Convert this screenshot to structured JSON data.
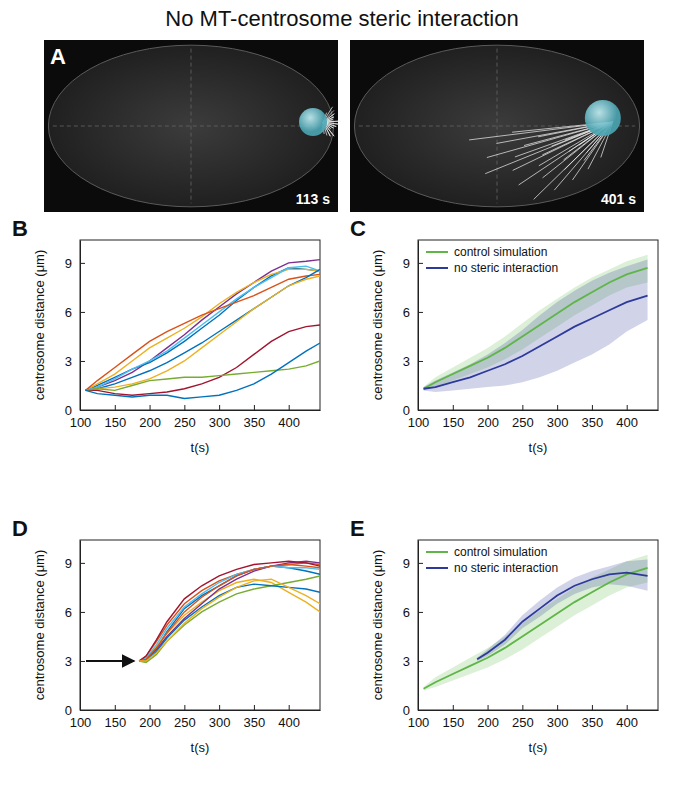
{
  "title": "No MT-centrosome steric interaction",
  "panel_a": {
    "letter": "A",
    "frames": [
      "113 s",
      "401 s"
    ]
  },
  "chart_data": [
    {
      "panel": "B",
      "type": "line",
      "x_label": "t(s)",
      "y_label": "centrosome distance (μm)",
      "xlim": [
        100,
        445
      ],
      "ylim": [
        0,
        10.4
      ],
      "xticks": [
        100,
        150,
        200,
        250,
        300,
        350,
        400
      ],
      "yticks": [
        0,
        3,
        6,
        9
      ],
      "series": [
        {
          "color": "#7e2f8e",
          "x": [
            108,
            125,
            150,
            175,
            200,
            225,
            250,
            275,
            300,
            325,
            350,
            375,
            400,
            425,
            445
          ],
          "values": [
            1.2,
            1.4,
            1.8,
            2.3,
            3,
            3.8,
            4.6,
            5.5,
            6.3,
            7.1,
            7.8,
            8.5,
            9,
            9.1,
            9.2
          ]
        },
        {
          "color": "#0072bd",
          "x": [
            108,
            125,
            150,
            175,
            200,
            225,
            250,
            275,
            300,
            325,
            350,
            375,
            400,
            425,
            445
          ],
          "values": [
            1.2,
            1.5,
            2,
            2.5,
            2.9,
            3.5,
            4.2,
            5,
            5.8,
            6.7,
            7.5,
            8.2,
            8.7,
            8.6,
            8.5
          ]
        },
        {
          "color": "#edb120",
          "x": [
            108,
            125,
            150,
            175,
            200,
            225,
            250,
            275,
            300,
            325,
            350,
            375,
            400,
            425,
            445
          ],
          "values": [
            1.2,
            1.6,
            2.2,
            3,
            3.8,
            4.4,
            5,
            5.7,
            6.5,
            7.2,
            7.8,
            8.3,
            8.6,
            8.6,
            8.5
          ]
        },
        {
          "color": "#4dbeee",
          "x": [
            108,
            125,
            150,
            175,
            200,
            225,
            250,
            275,
            300,
            325,
            350,
            375,
            400,
            425,
            445
          ],
          "values": [
            1.2,
            1.4,
            1.9,
            2.5,
            3,
            3.6,
            4.4,
            5.2,
            6,
            6.8,
            7.5,
            8.1,
            8.7,
            8.8,
            8.5
          ]
        },
        {
          "color": "#d95319",
          "x": [
            108,
            125,
            150,
            175,
            200,
            225,
            250,
            275,
            300,
            325,
            350,
            375,
            400,
            425,
            445
          ],
          "values": [
            1.2,
            1.8,
            2.6,
            3.4,
            4.2,
            4.8,
            5.3,
            5.8,
            6.2,
            6.6,
            7,
            7.5,
            8,
            8.2,
            8.3
          ]
        },
        {
          "color": "#0072bd",
          "x": [
            108,
            125,
            150,
            175,
            200,
            225,
            250,
            275,
            300,
            325,
            350,
            375,
            400,
            425,
            445
          ],
          "values": [
            1.2,
            1.3,
            1.6,
            2,
            2.4,
            2.9,
            3.5,
            4.1,
            4.8,
            5.5,
            6.2,
            6.9,
            7.6,
            8.1,
            8.6
          ]
        },
        {
          "color": "#edb120",
          "x": [
            108,
            125,
            150,
            175,
            200,
            225,
            250,
            275,
            300,
            325,
            350,
            375,
            400,
            425,
            445
          ],
          "values": [
            1.2,
            1.3,
            1.4,
            1.6,
            1.9,
            2.4,
            3,
            3.8,
            4.6,
            5.4,
            6.2,
            6.9,
            7.6,
            8,
            8.2
          ]
        },
        {
          "color": "#a2142f",
          "x": [
            108,
            125,
            150,
            175,
            200,
            225,
            250,
            275,
            300,
            325,
            350,
            375,
            400,
            425,
            445
          ],
          "values": [
            1.2,
            1.2,
            1,
            0.9,
            1,
            1.1,
            1.3,
            1.6,
            2,
            2.6,
            3.4,
            4.2,
            4.8,
            5.1,
            5.2
          ]
        },
        {
          "color": "#77ac30",
          "x": [
            108,
            125,
            150,
            175,
            200,
            225,
            250,
            275,
            300,
            325,
            350,
            375,
            400,
            425,
            445
          ],
          "values": [
            1.2,
            1.3,
            1.2,
            1.5,
            1.8,
            1.9,
            2,
            2,
            2.1,
            2.2,
            2.3,
            2.4,
            2.5,
            2.7,
            3
          ]
        },
        {
          "color": "#0072bd",
          "x": [
            108,
            125,
            150,
            175,
            200,
            225,
            250,
            275,
            300,
            325,
            350,
            375,
            400,
            425,
            445
          ],
          "values": [
            1.2,
            1,
            0.9,
            0.8,
            0.9,
            0.9,
            0.7,
            0.8,
            0.9,
            1.2,
            1.6,
            2.2,
            2.9,
            3.6,
            4.1
          ]
        }
      ]
    },
    {
      "panel": "C",
      "type": "line",
      "x_label": "t(s)",
      "y_label": "centrosome distance (μm)",
      "xlim": [
        100,
        445
      ],
      "ylim": [
        0,
        10.4
      ],
      "xticks": [
        100,
        150,
        200,
        250,
        300,
        350,
        400
      ],
      "yticks": [
        0,
        3,
        6,
        9
      ],
      "legend": "top-left",
      "series": [
        {
          "name": "control simulation",
          "color": "#5fb548",
          "x": [
            108,
            125,
            150,
            175,
            200,
            225,
            250,
            275,
            300,
            325,
            350,
            375,
            400,
            430
          ],
          "values": [
            1.3,
            1.7,
            2.2,
            2.7,
            3.2,
            3.8,
            4.5,
            5.2,
            5.9,
            6.6,
            7.2,
            7.8,
            8.3,
            8.7
          ],
          "lower": [
            1.2,
            1.4,
            1.8,
            2.2,
            2.6,
            3.1,
            3.7,
            4.4,
            5.1,
            5.8,
            6.4,
            7,
            7.5,
            7.8
          ],
          "upper": [
            1.4,
            2,
            2.6,
            3.2,
            3.8,
            4.5,
            5.3,
            6.1,
            6.8,
            7.5,
            8.1,
            8.6,
            9.1,
            9.5
          ]
        },
        {
          "name": "no steric interaction",
          "color": "#2e3a9a",
          "x": [
            108,
            125,
            150,
            175,
            200,
            225,
            250,
            275,
            300,
            325,
            350,
            375,
            400,
            430
          ],
          "values": [
            1.3,
            1.4,
            1.7,
            2,
            2.4,
            2.8,
            3.3,
            3.9,
            4.5,
            5.1,
            5.6,
            6.1,
            6.6,
            7
          ],
          "lower": [
            1.2,
            1.1,
            1.2,
            1.3,
            1.4,
            1.5,
            1.7,
            2,
            2.4,
            2.9,
            3.4,
            4,
            4.8,
            5.5
          ],
          "upper": [
            1.4,
            1.8,
            2.3,
            2.8,
            3.4,
            4.1,
            4.9,
            5.8,
            6.6,
            7.3,
            7.9,
            8.4,
            8.8,
            9.2
          ]
        }
      ]
    },
    {
      "panel": "D",
      "type": "line",
      "x_label": "t(s)",
      "y_label": "centrosome distance (μm)",
      "xlim": [
        100,
        445
      ],
      "ylim": [
        0,
        10.4
      ],
      "xticks": [
        100,
        150,
        200,
        250,
        300,
        350,
        400
      ],
      "yticks": [
        0,
        3,
        6,
        9
      ],
      "series": [
        {
          "color": "#0072bd",
          "x": [
            185,
            195,
            210,
            225,
            250,
            275,
            300,
            325,
            350,
            375,
            400,
            425,
            445
          ],
          "values": [
            3,
            3.1,
            3.8,
            4.8,
            6.2,
            7,
            7.6,
            8.2,
            8.6,
            8.8,
            8.7,
            8.5,
            8.3
          ]
        },
        {
          "color": "#d95319",
          "x": [
            185,
            195,
            210,
            225,
            250,
            275,
            300,
            325,
            350,
            375,
            400,
            425,
            445
          ],
          "values": [
            3,
            3.3,
            4.2,
            5.2,
            6.5,
            7.3,
            7.9,
            8.3,
            8.6,
            8.8,
            8.9,
            9,
            8.9
          ]
        },
        {
          "color": "#edb120",
          "x": [
            185,
            195,
            210,
            225,
            250,
            275,
            300,
            325,
            350,
            375,
            400,
            425,
            445
          ],
          "values": [
            3,
            3.2,
            3.9,
            4.7,
            5.8,
            6.6,
            7.3,
            7.8,
            8,
            7.8,
            7.2,
            6.6,
            6
          ]
        },
        {
          "color": "#7e2f8e",
          "x": [
            185,
            195,
            210,
            225,
            250,
            275,
            300,
            325,
            350,
            375,
            400,
            425,
            445
          ],
          "values": [
            3,
            3.1,
            3.7,
            4.5,
            5.6,
            6.5,
            7.4,
            8,
            8.5,
            8.8,
            9,
            9.1,
            9
          ]
        },
        {
          "color": "#77ac30",
          "x": [
            185,
            195,
            210,
            225,
            250,
            275,
            300,
            325,
            350,
            375,
            400,
            425,
            445
          ],
          "values": [
            3,
            2.9,
            3.4,
            4.2,
            5.2,
            6,
            6.6,
            7.1,
            7.4,
            7.6,
            7.8,
            8,
            8.2
          ]
        },
        {
          "color": "#4dbeee",
          "x": [
            185,
            195,
            210,
            225,
            250,
            275,
            300,
            325,
            350,
            375,
            400,
            425,
            445
          ],
          "values": [
            3,
            3.2,
            4,
            5,
            6.3,
            7.1,
            7.8,
            8.3,
            8.6,
            8.8,
            8.7,
            8.7,
            8.6
          ]
        },
        {
          "color": "#a2142f",
          "x": [
            185,
            195,
            210,
            225,
            250,
            275,
            300,
            325,
            350,
            375,
            400,
            425,
            445
          ],
          "values": [
            3,
            3.3,
            4.3,
            5.4,
            6.8,
            7.6,
            8.2,
            8.6,
            8.9,
            9,
            9.1,
            9,
            8.8
          ]
        },
        {
          "color": "#0072bd",
          "x": [
            185,
            195,
            210,
            225,
            250,
            275,
            300,
            325,
            350,
            375,
            400,
            425,
            445
          ],
          "values": [
            3,
            3,
            3.6,
            4.4,
            5.5,
            6.3,
            7,
            7.5,
            7.7,
            7.6,
            7.5,
            7.4,
            7.2
          ]
        },
        {
          "color": "#d95319",
          "x": [
            185,
            195,
            210,
            225,
            250,
            275,
            300,
            325,
            350,
            375,
            400,
            425,
            445
          ],
          "values": [
            3,
            3.1,
            3.8,
            4.7,
            6,
            6.9,
            7.6,
            8.2,
            8.6,
            8.8,
            8.9,
            8.8,
            8.7
          ]
        },
        {
          "color": "#edb120",
          "x": [
            185,
            195,
            210,
            225,
            250,
            275,
            300,
            325,
            350,
            375,
            400,
            425,
            445
          ],
          "values": [
            3,
            3,
            3.5,
            4.2,
            5.3,
            6.2,
            6.9,
            7.5,
            7.9,
            8,
            7.5,
            7,
            6.5
          ]
        }
      ]
    },
    {
      "panel": "E",
      "type": "line",
      "x_label": "t(s)",
      "y_label": "centrosome distance (μm)",
      "xlim": [
        100,
        445
      ],
      "ylim": [
        0,
        10.4
      ],
      "xticks": [
        100,
        150,
        200,
        250,
        300,
        350,
        400
      ],
      "yticks": [
        0,
        3,
        6,
        9
      ],
      "legend": "top-left",
      "series": [
        {
          "name": "control simulation",
          "color": "#5fb548",
          "x": [
            108,
            125,
            150,
            175,
            200,
            225,
            250,
            275,
            300,
            325,
            350,
            375,
            400,
            430
          ],
          "values": [
            1.3,
            1.7,
            2.2,
            2.7,
            3.2,
            3.8,
            4.5,
            5.2,
            5.9,
            6.6,
            7.2,
            7.8,
            8.3,
            8.7
          ],
          "lower": [
            1.2,
            1.4,
            1.8,
            2.2,
            2.6,
            3.1,
            3.7,
            4.4,
            5.1,
            5.8,
            6.4,
            7,
            7.5,
            7.8
          ],
          "upper": [
            1.4,
            2,
            2.6,
            3.2,
            3.8,
            4.5,
            5.3,
            6.1,
            6.8,
            7.5,
            8.1,
            8.6,
            9.1,
            9.5
          ]
        },
        {
          "name": "no steric interaction",
          "color": "#2e3a9a",
          "x": [
            185,
            200,
            225,
            250,
            275,
            300,
            325,
            350,
            375,
            400,
            430
          ],
          "values": [
            3.1,
            3.5,
            4.3,
            5.4,
            6.2,
            7,
            7.6,
            8,
            8.3,
            8.4,
            8.2
          ],
          "lower": [
            3,
            3.3,
            4,
            5,
            5.7,
            6.5,
            7.1,
            7.5,
            7.7,
            7.6,
            7.3
          ],
          "upper": [
            3.2,
            3.7,
            4.6,
            5.8,
            6.7,
            7.5,
            8.1,
            8.5,
            8.8,
            9.1,
            9.2
          ]
        }
      ]
    }
  ]
}
